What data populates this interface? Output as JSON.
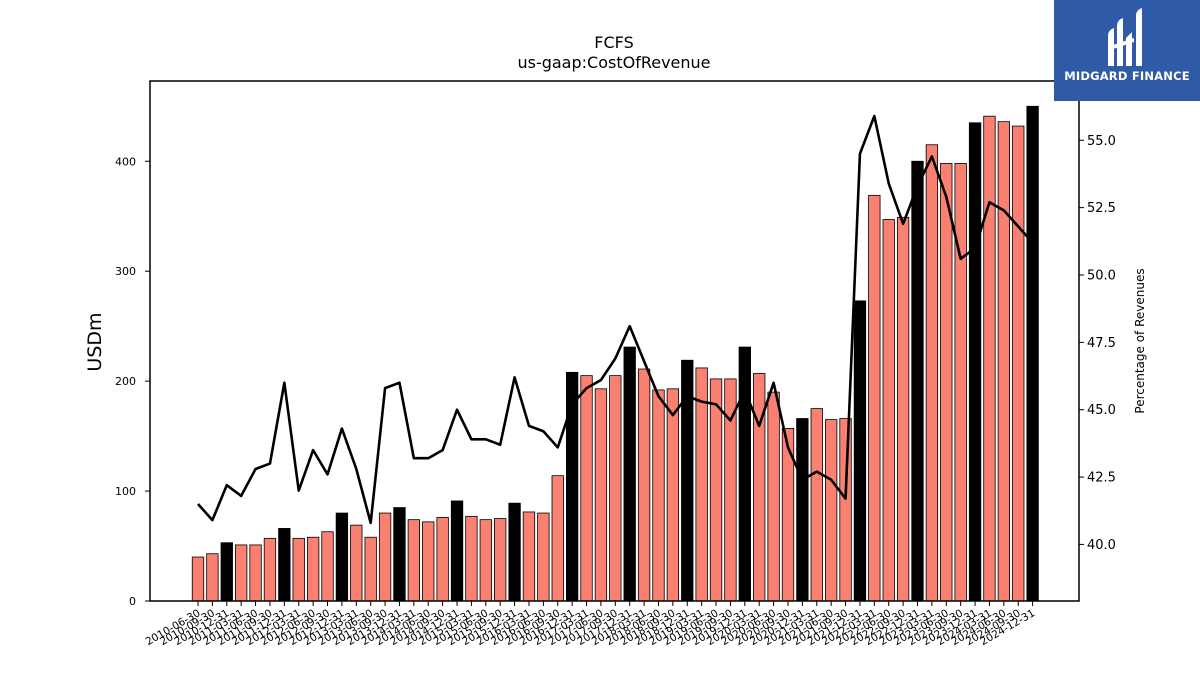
{
  "chart_data": {
    "type": "bar+line",
    "title": "FCFS",
    "subtitle": "us-gaap:CostOfRevenue",
    "ylabel": "USDm",
    "ylabel_right": "Percentage of Revenues",
    "ylim": [
      0,
      473
    ],
    "ylim_right": [
      37.9,
      57.2
    ],
    "yticks": [
      0,
      100,
      200,
      300,
      400
    ],
    "yticks_right": [
      40.0,
      42.5,
      45.0,
      47.5,
      50.0,
      52.5,
      55.0
    ],
    "categories": [
      "2010-06-30",
      "2010-09-30",
      "2010-12-31",
      "2011-03-31",
      "2011-06-30",
      "2011-09-30",
      "2011-12-31",
      "2012-03-31",
      "2012-06-30",
      "2012-09-30",
      "2012-12-31",
      "2013-03-31",
      "2013-06-30",
      "2013-09-30",
      "2013-12-31",
      "2014-03-31",
      "2014-06-30",
      "2014-09-30",
      "2014-12-31",
      "2015-03-31",
      "2015-06-30",
      "2015-09-30",
      "2015-12-31",
      "2016-03-31",
      "2016-06-30",
      "2016-09-30",
      "2016-12-31",
      "2017-03-31",
      "2017-06-30",
      "2017-09-30",
      "2017-12-31",
      "2018-03-31",
      "2018-06-30",
      "2018-09-30",
      "2018-12-31",
      "2019-03-31",
      "2019-06-30",
      "2019-09-30",
      "2019-12-31",
      "2020-03-31",
      "2020-06-30",
      "2020-09-30",
      "2020-12-31",
      "2021-03-31",
      "2021-06-30",
      "2021-09-30",
      "2021-12-31",
      "2022-03-31",
      "2022-06-30",
      "2022-09-30",
      "2022-12-31",
      "2023-03-31",
      "2023-06-30",
      "2023-09-30",
      "2023-12-31",
      "2024-03-31",
      "2024-06-30",
      "2024-09-30",
      "2024-12-31"
    ],
    "series": [
      {
        "name": "",
        "type": "bar",
        "values": [
          40,
          43,
          53,
          51,
          51,
          57,
          66,
          57,
          58,
          63,
          80,
          69,
          58,
          80,
          85,
          74,
          72,
          76,
          91,
          77,
          74,
          75,
          89,
          81,
          80,
          114,
          208,
          205,
          193,
          205,
          231,
          211,
          192,
          193,
          219,
          212,
          202,
          202,
          231,
          207,
          190,
          157,
          166,
          175,
          165,
          166,
          273,
          369,
          347,
          349,
          400,
          415,
          398,
          398,
          435,
          441,
          436,
          432,
          450
        ]
      },
      {
        "name": "",
        "type": "line",
        "values": [
          41.5,
          40.9,
          42.2,
          41.8,
          42.8,
          43.0,
          46.0,
          42.0,
          43.5,
          42.6,
          44.3,
          42.8,
          40.8,
          45.8,
          46.0,
          43.2,
          43.2,
          43.5,
          45.0,
          43.9,
          43.9,
          43.7,
          46.2,
          44.4,
          44.2,
          43.6,
          45.2,
          45.8,
          46.1,
          46.9,
          48.1,
          46.8,
          45.5,
          44.8,
          45.5,
          45.3,
          45.2,
          44.6,
          45.7,
          44.4,
          46.0,
          43.6,
          42.4,
          42.7,
          42.4,
          41.7,
          54.5,
          55.9,
          53.4,
          51.9,
          53.3,
          54.4,
          52.9,
          50.6,
          51.0,
          52.7,
          52.4,
          51.8,
          51.2
        ]
      }
    ],
    "bar_colors": {
      "normal": "#fa8072",
      "highlight": "#000000"
    },
    "highlight_month": "12-31",
    "line_color": "#000000",
    "grid": false,
    "legend": "none"
  },
  "logo": {
    "text": "MIDGARD FINANCE",
    "background": "#2f5aa8"
  }
}
